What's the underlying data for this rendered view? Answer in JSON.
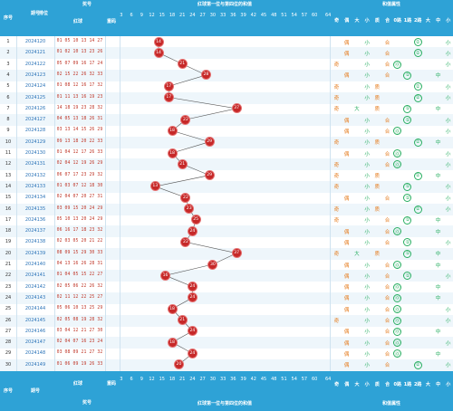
{
  "header": {
    "seq_label": "序号",
    "period_label": "期号",
    "sort_label": "排位",
    "draw_label": "奖号",
    "red_label": "红球",
    "count_label": "重码",
    "main_title": "红球第一位与第四位的和值",
    "attr_title": "和值属性",
    "value_ticks": [
      "3",
      "6",
      "9",
      "12",
      "15",
      "18",
      "21",
      "24",
      "27",
      "30",
      "33",
      "36",
      "39",
      "42",
      "45",
      "48",
      "51",
      "54",
      "57",
      "60",
      "64"
    ],
    "attr_labels": [
      "奇",
      "偶",
      "大",
      "小",
      "质",
      "合",
      "0路",
      "1路",
      "2路",
      "大",
      "中",
      "小"
    ]
  },
  "footer": {
    "seq_label": "序号",
    "period_label": "期号",
    "draw_label": "奖号",
    "red_label": "红球",
    "count_label": "重码",
    "main_title": "红球第一位与第四位的和值",
    "attr_title": "和值属性"
  },
  "rows": [
    {
      "seq": "1",
      "period": "2024120",
      "nums": "01 05 10 13 14 27",
      "val": "14",
      "attrs": [
        {
          "col": 1,
          "t": "偶",
          "c": "even"
        },
        {
          "col": 3,
          "t": "小",
          "c": "small"
        },
        {
          "col": 5,
          "t": "合",
          "c": "combo"
        },
        {
          "col": 8,
          "t": "②",
          "c": "circle"
        },
        {
          "col": 11,
          "t": "小",
          "c": "small"
        }
      ]
    },
    {
      "seq": "2",
      "period": "2024121",
      "nums": "01 02 10 13 23 26",
      "val": "14",
      "attrs": [
        {
          "col": 1,
          "t": "偶",
          "c": "even"
        },
        {
          "col": 3,
          "t": "小",
          "c": "small"
        },
        {
          "col": 5,
          "t": "合",
          "c": "combo"
        },
        {
          "col": 8,
          "t": "②",
          "c": "circle"
        },
        {
          "col": 11,
          "t": "小",
          "c": "small"
        }
      ]
    },
    {
      "seq": "3",
      "period": "2024122",
      "nums": "05 07 09 16 17 24",
      "val": "21",
      "attrs": [
        {
          "col": 0,
          "t": "奇",
          "c": "odd"
        },
        {
          "col": 3,
          "t": "小",
          "c": "small"
        },
        {
          "col": 5,
          "t": "合",
          "c": "combo"
        },
        {
          "col": 6,
          "t": "⓪",
          "c": "circle"
        },
        {
          "col": 11,
          "t": "小",
          "c": "small"
        }
      ]
    },
    {
      "seq": "4",
      "period": "2024123",
      "nums": "02 15 22 26 32 33",
      "val": "28",
      "attrs": [
        {
          "col": 1,
          "t": "偶",
          "c": "even"
        },
        {
          "col": 3,
          "t": "小",
          "c": "small"
        },
        {
          "col": 5,
          "t": "合",
          "c": "combo"
        },
        {
          "col": 7,
          "t": "①",
          "c": "circle"
        },
        {
          "col": 10,
          "t": "中",
          "c": "mid"
        }
      ]
    },
    {
      "seq": "5",
      "period": "2024124",
      "nums": "01 08 12 16 17 32",
      "val": "17",
      "attrs": [
        {
          "col": 0,
          "t": "奇",
          "c": "odd"
        },
        {
          "col": 3,
          "t": "小",
          "c": "small"
        },
        {
          "col": 4,
          "t": "质",
          "c": "prime"
        },
        {
          "col": 8,
          "t": "②",
          "c": "circle"
        },
        {
          "col": 11,
          "t": "小",
          "c": "small"
        }
      ]
    },
    {
      "seq": "6",
      "period": "2024125",
      "nums": "01 11 13 16 19 23",
      "val": "17",
      "attrs": [
        {
          "col": 0,
          "t": "奇",
          "c": "odd"
        },
        {
          "col": 3,
          "t": "小",
          "c": "small"
        },
        {
          "col": 4,
          "t": "质",
          "c": "prime"
        },
        {
          "col": 8,
          "t": "②",
          "c": "circle"
        },
        {
          "col": 11,
          "t": "小",
          "c": "small"
        }
      ]
    },
    {
      "seq": "7",
      "period": "2024126",
      "nums": "14 18 19 23 28 32",
      "val": "37",
      "attrs": [
        {
          "col": 0,
          "t": "奇",
          "c": "odd"
        },
        {
          "col": 2,
          "t": "大",
          "c": "big"
        },
        {
          "col": 4,
          "t": "质",
          "c": "prime"
        },
        {
          "col": 7,
          "t": "①",
          "c": "circle"
        },
        {
          "col": 10,
          "t": "中",
          "c": "mid"
        }
      ]
    },
    {
      "seq": "8",
      "period": "2024127",
      "nums": "04 05 13 18 26 31",
      "val": "22",
      "attrs": [
        {
          "col": 1,
          "t": "偶",
          "c": "even"
        },
        {
          "col": 3,
          "t": "小",
          "c": "small"
        },
        {
          "col": 5,
          "t": "合",
          "c": "combo"
        },
        {
          "col": 7,
          "t": "①",
          "c": "circle"
        },
        {
          "col": 11,
          "t": "小",
          "c": "small"
        }
      ]
    },
    {
      "seq": "9",
      "period": "2024128",
      "nums": "03 13 14 15 26 29",
      "val": "18",
      "attrs": [
        {
          "col": 1,
          "t": "偶",
          "c": "even"
        },
        {
          "col": 3,
          "t": "小",
          "c": "small"
        },
        {
          "col": 5,
          "t": "合",
          "c": "combo"
        },
        {
          "col": 6,
          "t": "⓪",
          "c": "circle"
        },
        {
          "col": 11,
          "t": "小",
          "c": "small"
        }
      ]
    },
    {
      "seq": "10",
      "period": "2024129",
      "nums": "09 13 18 20 22 33",
      "val": "29",
      "attrs": [
        {
          "col": 0,
          "t": "奇",
          "c": "odd"
        },
        {
          "col": 3,
          "t": "小",
          "c": "small"
        },
        {
          "col": 4,
          "t": "质",
          "c": "prime"
        },
        {
          "col": 8,
          "t": "②",
          "c": "circle"
        },
        {
          "col": 10,
          "t": "中",
          "c": "mid"
        }
      ]
    },
    {
      "seq": "11",
      "period": "2024130",
      "nums": "01 04 12 17 26 33",
      "val": "18",
      "attrs": [
        {
          "col": 1,
          "t": "偶",
          "c": "even"
        },
        {
          "col": 3,
          "t": "小",
          "c": "small"
        },
        {
          "col": 5,
          "t": "合",
          "c": "combo"
        },
        {
          "col": 6,
          "t": "⓪",
          "c": "circle"
        },
        {
          "col": 11,
          "t": "小",
          "c": "small"
        }
      ]
    },
    {
      "seq": "12",
      "period": "2024131",
      "nums": "02 04 12 19 26 29",
      "val": "21",
      "attrs": [
        {
          "col": 0,
          "t": "奇",
          "c": "odd"
        },
        {
          "col": 3,
          "t": "小",
          "c": "small"
        },
        {
          "col": 5,
          "t": "合",
          "c": "combo"
        },
        {
          "col": 6,
          "t": "⓪",
          "c": "circle"
        },
        {
          "col": 11,
          "t": "小",
          "c": "small"
        }
      ]
    },
    {
      "seq": "13",
      "period": "2024132",
      "nums": "06 07 17 23 29 32",
      "val": "29",
      "attrs": [
        {
          "col": 0,
          "t": "奇",
          "c": "odd"
        },
        {
          "col": 3,
          "t": "小",
          "c": "small"
        },
        {
          "col": 4,
          "t": "质",
          "c": "prime"
        },
        {
          "col": 8,
          "t": "②",
          "c": "circle"
        },
        {
          "col": 10,
          "t": "中",
          "c": "mid"
        }
      ]
    },
    {
      "seq": "14",
      "period": "2024133",
      "nums": "01 03 07 12 18 30",
      "val": "13",
      "attrs": [
        {
          "col": 0,
          "t": "奇",
          "c": "odd"
        },
        {
          "col": 3,
          "t": "小",
          "c": "small"
        },
        {
          "col": 4,
          "t": "质",
          "c": "prime"
        },
        {
          "col": 7,
          "t": "①",
          "c": "circle"
        },
        {
          "col": 11,
          "t": "小",
          "c": "small"
        }
      ]
    },
    {
      "seq": "15",
      "period": "2024134",
      "nums": "02 04 07 20 27 31",
      "val": "22",
      "attrs": [
        {
          "col": 1,
          "t": "偶",
          "c": "even"
        },
        {
          "col": 3,
          "t": "小",
          "c": "small"
        },
        {
          "col": 5,
          "t": "合",
          "c": "combo"
        },
        {
          "col": 7,
          "t": "①",
          "c": "circle"
        },
        {
          "col": 11,
          "t": "小",
          "c": "small"
        }
      ]
    },
    {
      "seq": "16",
      "period": "2024135",
      "nums": "03 09 15 20 24 29",
      "val": "23",
      "attrs": [
        {
          "col": 0,
          "t": "奇",
          "c": "odd"
        },
        {
          "col": 3,
          "t": "小",
          "c": "small"
        },
        {
          "col": 4,
          "t": "质",
          "c": "prime"
        },
        {
          "col": 8,
          "t": "②",
          "c": "circle"
        },
        {
          "col": 11,
          "t": "小",
          "c": "small"
        }
      ]
    },
    {
      "seq": "17",
      "period": "2024136",
      "nums": "05 10 13 20 24 29",
      "val": "25",
      "attrs": [
        {
          "col": 0,
          "t": "奇",
          "c": "odd"
        },
        {
          "col": 3,
          "t": "小",
          "c": "small"
        },
        {
          "col": 5,
          "t": "合",
          "c": "combo"
        },
        {
          "col": 7,
          "t": "①",
          "c": "circle"
        },
        {
          "col": 10,
          "t": "中",
          "c": "mid"
        }
      ]
    },
    {
      "seq": "18",
      "period": "2024137",
      "nums": "06 16 17 18 23 32",
      "val": "24",
      "attrs": [
        {
          "col": 1,
          "t": "偶",
          "c": "even"
        },
        {
          "col": 3,
          "t": "小",
          "c": "small"
        },
        {
          "col": 5,
          "t": "合",
          "c": "combo"
        },
        {
          "col": 6,
          "t": "⓪",
          "c": "circle"
        },
        {
          "col": 10,
          "t": "中",
          "c": "mid"
        }
      ]
    },
    {
      "seq": "19",
      "period": "2024138",
      "nums": "02 03 05 20 21 22",
      "val": "22",
      "attrs": [
        {
          "col": 1,
          "t": "偶",
          "c": "even"
        },
        {
          "col": 3,
          "t": "小",
          "c": "small"
        },
        {
          "col": 5,
          "t": "合",
          "c": "combo"
        },
        {
          "col": 7,
          "t": "①",
          "c": "circle"
        },
        {
          "col": 11,
          "t": "小",
          "c": "small"
        }
      ]
    },
    {
      "seq": "20",
      "period": "2024139",
      "nums": "08 09 15 29 30 33",
      "val": "37",
      "attrs": [
        {
          "col": 0,
          "t": "奇",
          "c": "odd"
        },
        {
          "col": 2,
          "t": "大",
          "c": "big"
        },
        {
          "col": 4,
          "t": "质",
          "c": "prime"
        },
        {
          "col": 7,
          "t": "①",
          "c": "circle"
        },
        {
          "col": 10,
          "t": "中",
          "c": "mid"
        }
      ]
    },
    {
      "seq": "21",
      "period": "2024140",
      "nums": "04 13 16 26 28 31",
      "val": "30",
      "attrs": [
        {
          "col": 1,
          "t": "偶",
          "c": "even"
        },
        {
          "col": 3,
          "t": "小",
          "c": "small"
        },
        {
          "col": 5,
          "t": "合",
          "c": "combo"
        },
        {
          "col": 6,
          "t": "⓪",
          "c": "circle"
        },
        {
          "col": 10,
          "t": "中",
          "c": "mid"
        }
      ]
    },
    {
      "seq": "22",
      "period": "2024141",
      "nums": "01 04 05 15 22 27",
      "val": "16",
      "attrs": [
        {
          "col": 1,
          "t": "偶",
          "c": "even"
        },
        {
          "col": 3,
          "t": "小",
          "c": "small"
        },
        {
          "col": 5,
          "t": "合",
          "c": "combo"
        },
        {
          "col": 7,
          "t": "①",
          "c": "circle"
        },
        {
          "col": 11,
          "t": "小",
          "c": "small"
        }
      ]
    },
    {
      "seq": "23",
      "period": "2024142",
      "nums": "02 05 06 22 26 32",
      "val": "24",
      "attrs": [
        {
          "col": 1,
          "t": "偶",
          "c": "even"
        },
        {
          "col": 3,
          "t": "小",
          "c": "small"
        },
        {
          "col": 5,
          "t": "合",
          "c": "combo"
        },
        {
          "col": 6,
          "t": "⓪",
          "c": "circle"
        },
        {
          "col": 10,
          "t": "中",
          "c": "mid"
        }
      ]
    },
    {
      "seq": "24",
      "period": "2024143",
      "nums": "02 11 12 22 25 27",
      "val": "24",
      "attrs": [
        {
          "col": 1,
          "t": "偶",
          "c": "even"
        },
        {
          "col": 3,
          "t": "小",
          "c": "small"
        },
        {
          "col": 5,
          "t": "合",
          "c": "combo"
        },
        {
          "col": 6,
          "t": "⓪",
          "c": "circle"
        },
        {
          "col": 10,
          "t": "中",
          "c": "mid"
        }
      ]
    },
    {
      "seq": "25",
      "period": "2024144",
      "nums": "05 06 10 13 25 29",
      "val": "18",
      "attrs": [
        {
          "col": 1,
          "t": "偶",
          "c": "even"
        },
        {
          "col": 3,
          "t": "小",
          "c": "small"
        },
        {
          "col": 5,
          "t": "合",
          "c": "combo"
        },
        {
          "col": 6,
          "t": "⓪",
          "c": "circle"
        },
        {
          "col": 11,
          "t": "小",
          "c": "small"
        }
      ]
    },
    {
      "seq": "26",
      "period": "2024145",
      "nums": "02 05 08 19 28 32",
      "val": "21",
      "attrs": [
        {
          "col": 0,
          "t": "奇",
          "c": "odd"
        },
        {
          "col": 3,
          "t": "小",
          "c": "small"
        },
        {
          "col": 5,
          "t": "合",
          "c": "combo"
        },
        {
          "col": 6,
          "t": "⓪",
          "c": "circle"
        },
        {
          "col": 11,
          "t": "小",
          "c": "small"
        }
      ]
    },
    {
      "seq": "27",
      "period": "2024146",
      "nums": "03 04 12 21 27 30",
      "val": "24",
      "attrs": [
        {
          "col": 1,
          "t": "偶",
          "c": "even"
        },
        {
          "col": 3,
          "t": "小",
          "c": "small"
        },
        {
          "col": 5,
          "t": "合",
          "c": "combo"
        },
        {
          "col": 6,
          "t": "⓪",
          "c": "circle"
        },
        {
          "col": 10,
          "t": "中",
          "c": "mid"
        }
      ]
    },
    {
      "seq": "28",
      "period": "2024147",
      "nums": "02 04 07 16 23 24",
      "val": "18",
      "attrs": [
        {
          "col": 1,
          "t": "偶",
          "c": "even"
        },
        {
          "col": 3,
          "t": "小",
          "c": "small"
        },
        {
          "col": 5,
          "t": "合",
          "c": "combo"
        },
        {
          "col": 6,
          "t": "⓪",
          "c": "circle"
        },
        {
          "col": 11,
          "t": "小",
          "c": "small"
        }
      ]
    },
    {
      "seq": "29",
      "period": "2024148",
      "nums": "03 08 09 21 27 32",
      "val": "24",
      "attrs": [
        {
          "col": 1,
          "t": "偶",
          "c": "even"
        },
        {
          "col": 3,
          "t": "小",
          "c": "small"
        },
        {
          "col": 5,
          "t": "合",
          "c": "combo"
        },
        {
          "col": 6,
          "t": "⓪",
          "c": "circle"
        },
        {
          "col": 10,
          "t": "中",
          "c": "mid"
        }
      ]
    },
    {
      "seq": "30",
      "period": "2024149",
      "nums": "01 06 09 19 26 33",
      "val": "20",
      "attrs": [
        {
          "col": 1,
          "t": "偶",
          "c": "even"
        },
        {
          "col": 3,
          "t": "小",
          "c": "small"
        },
        {
          "col": 5,
          "t": "合",
          "c": "combo"
        },
        {
          "col": 8,
          "t": "②",
          "c": "circle"
        },
        {
          "col": 11,
          "t": "小",
          "c": "small"
        }
      ]
    }
  ],
  "colors": {
    "header": "#2ea2d6",
    "ball": "#c62828",
    "alt_row": "#eef6fb",
    "number_text": "#c0392b"
  }
}
